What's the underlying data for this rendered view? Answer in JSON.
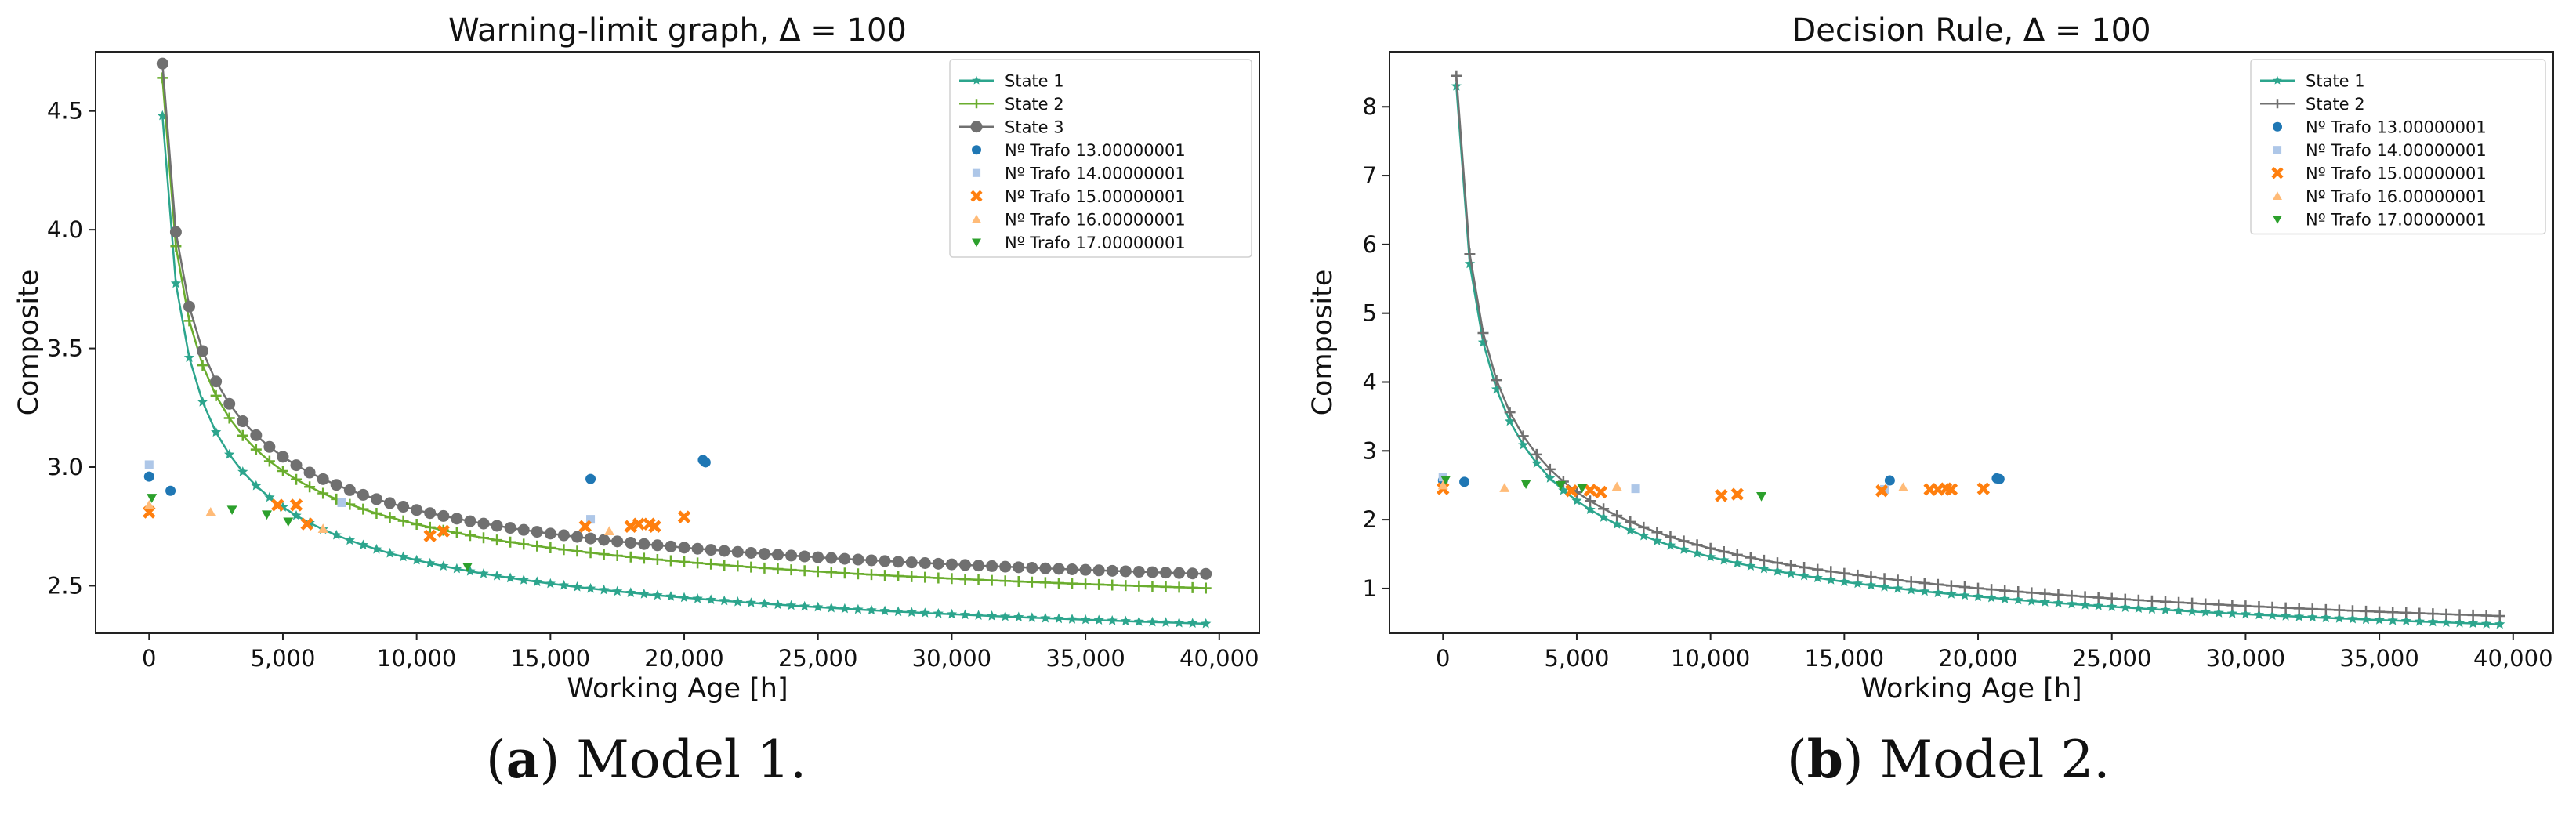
{
  "figure": {
    "captions": [
      {
        "tag": "a",
        "text": "Model 1."
      },
      {
        "tag": "b",
        "text": "Model 2."
      }
    ]
  },
  "chart_data": [
    {
      "type": "scatter",
      "title": "Warning-limit graph, Δ = 100",
      "xlabel": "Working Age [h]",
      "ylabel": "Composite",
      "xlim": [
        -2000,
        41500
      ],
      "ylim": [
        2.3,
        4.75
      ],
      "xticks": [
        0,
        5000,
        10000,
        15000,
        20000,
        25000,
        30000,
        35000,
        40000
      ],
      "xtick_labels": [
        "0",
        "5,000",
        "10,000",
        "15,000",
        "20,000",
        "25,000",
        "30,000",
        "35,000",
        "40,000"
      ],
      "yticks": [
        2.5,
        3.0,
        3.5,
        4.0,
        4.5
      ],
      "ytick_labels": [
        "2.5",
        "3.0",
        "3.5",
        "4.0",
        "4.5"
      ],
      "legend_position": "top-right",
      "curves": [
        {
          "name": "State 1",
          "color": "#2ca58d",
          "marker": "star",
          "x_start": 500,
          "x_end": 39500,
          "step": 500,
          "a": 4.48,
          "b": 2.34
        },
        {
          "name": "State 2",
          "color": "#6aad2e",
          "marker": "plus",
          "x_start": 500,
          "x_end": 39500,
          "step": 500,
          "a": 4.64,
          "b": 2.49
        },
        {
          "name": "State 3",
          "color": "#707070",
          "marker": "circle",
          "x_start": 500,
          "x_end": 39500,
          "step": 500,
          "a": 4.7,
          "b": 2.55
        }
      ],
      "series": [
        {
          "name": "Nº Trafo 13.00000001",
          "color": "#1f77b4",
          "marker": "circle",
          "points": [
            [
              0,
              2.96
            ],
            [
              800,
              2.9
            ],
            [
              16500,
              2.95
            ],
            [
              20700,
              3.03
            ],
            [
              20800,
              3.02
            ]
          ]
        },
        {
          "name": "Nº Trafo 14.00000001",
          "color": "#aec7e8",
          "marker": "square",
          "points": [
            [
              0,
              3.01
            ],
            [
              7200,
              2.85
            ],
            [
              16500,
              2.78
            ]
          ]
        },
        {
          "name": "Nº Trafo 15.00000001",
          "color": "#ff7f0e",
          "marker": "x",
          "points": [
            [
              0,
              2.81
            ],
            [
              4800,
              2.84
            ],
            [
              5500,
              2.84
            ],
            [
              5900,
              2.76
            ],
            [
              10500,
              2.71
            ],
            [
              11000,
              2.73
            ],
            [
              16300,
              2.75
            ],
            [
              18000,
              2.75
            ],
            [
              18300,
              2.76
            ],
            [
              18700,
              2.76
            ],
            [
              18900,
              2.75
            ],
            [
              20000,
              2.79
            ]
          ]
        },
        {
          "name": "Nº Trafo 16.00000001",
          "color": "#ffbb78",
          "marker": "triangle-up",
          "points": [
            [
              0,
              2.84
            ],
            [
              2300,
              2.81
            ],
            [
              6500,
              2.74
            ],
            [
              17200,
              2.73
            ]
          ]
        },
        {
          "name": "Nº Trafo 17.00000001",
          "color": "#2ca02c",
          "marker": "triangle-down",
          "points": [
            [
              100,
              2.87
            ],
            [
              3100,
              2.82
            ],
            [
              4400,
              2.8
            ],
            [
              5200,
              2.77
            ],
            [
              11900,
              2.58
            ]
          ]
        }
      ]
    },
    {
      "type": "scatter",
      "title": "Decision Rule, Δ = 100",
      "xlabel": "Working Age [h]",
      "ylabel": "Composite",
      "xlim": [
        -2000,
        41500
      ],
      "ylim": [
        0.35,
        8.8
      ],
      "xticks": [
        0,
        5000,
        10000,
        15000,
        20000,
        25000,
        30000,
        35000,
        40000
      ],
      "xtick_labels": [
        "0",
        "5,000",
        "10,000",
        "15,000",
        "20,000",
        "25,000",
        "30,000",
        "35,000",
        "40,000"
      ],
      "yticks": [
        1,
        2,
        3,
        4,
        5,
        6,
        7,
        8
      ],
      "ytick_labels": [
        "1",
        "2",
        "3",
        "4",
        "5",
        "6",
        "7",
        "8"
      ],
      "legend_position": "top-right",
      "curves": [
        {
          "name": "State 1",
          "color": "#2ca58d",
          "marker": "star",
          "x_start": 500,
          "x_end": 39500,
          "step": 500,
          "a": 8.3,
          "b": 0.48
        },
        {
          "name": "State 2",
          "color": "#707070",
          "marker": "plus",
          "x_start": 500,
          "x_end": 39500,
          "step": 500,
          "a": 8.45,
          "b": 0.6
        }
      ],
      "series": [
        {
          "name": "Nº Trafo 13.00000001",
          "color": "#1f77b4",
          "marker": "circle",
          "points": [
            [
              0,
              2.57
            ],
            [
              800,
              2.55
            ],
            [
              16700,
              2.57
            ],
            [
              20700,
              2.6
            ],
            [
              20800,
              2.59
            ]
          ]
        },
        {
          "name": "Nº Trafo 14.00000001",
          "color": "#aec7e8",
          "marker": "square",
          "points": [
            [
              0,
              2.62
            ],
            [
              7200,
              2.45
            ],
            [
              16500,
              2.44
            ]
          ]
        },
        {
          "name": "Nº Trafo 15.00000001",
          "color": "#ff7f0e",
          "marker": "x",
          "points": [
            [
              0,
              2.45
            ],
            [
              4800,
              2.42
            ],
            [
              5500,
              2.43
            ],
            [
              5900,
              2.4
            ],
            [
              10400,
              2.35
            ],
            [
              11000,
              2.37
            ],
            [
              16400,
              2.42
            ],
            [
              18200,
              2.44
            ],
            [
              18500,
              2.44
            ],
            [
              18800,
              2.45
            ],
            [
              19000,
              2.44
            ],
            [
              20200,
              2.45
            ]
          ]
        },
        {
          "name": "Nº Trafo 16.00000001",
          "color": "#ffbb78",
          "marker": "triangle-up",
          "points": [
            [
              0,
              2.5
            ],
            [
              2300,
              2.46
            ],
            [
              6500,
              2.48
            ],
            [
              17200,
              2.47
            ]
          ]
        },
        {
          "name": "Nº Trafo 17.00000001",
          "color": "#2ca02c",
          "marker": "triangle-down",
          "points": [
            [
              100,
              2.58
            ],
            [
              3100,
              2.52
            ],
            [
              4400,
              2.5
            ],
            [
              5200,
              2.46
            ],
            [
              11900,
              2.34
            ]
          ]
        }
      ]
    }
  ]
}
